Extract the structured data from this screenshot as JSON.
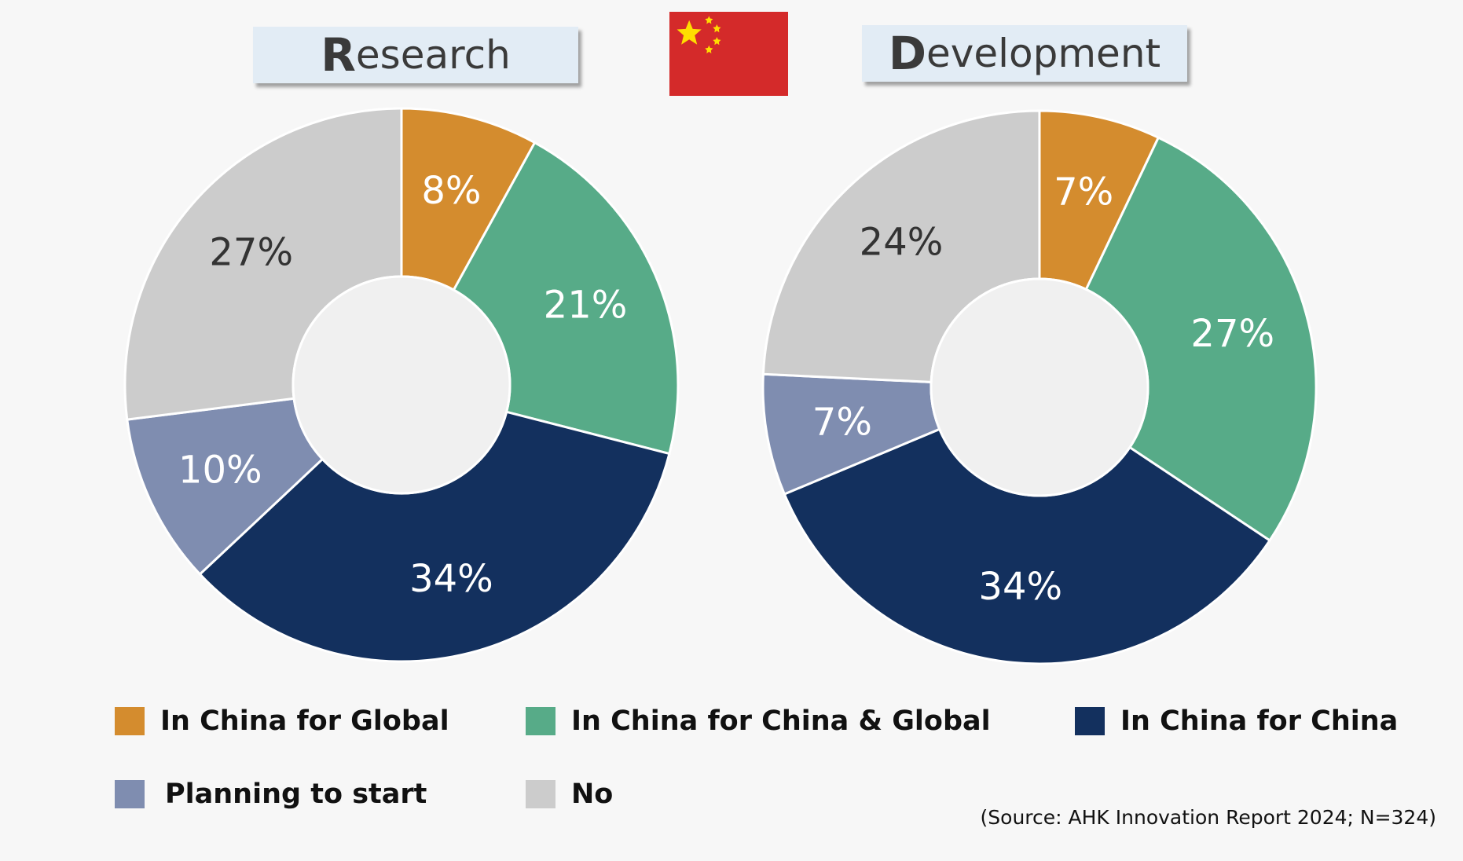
{
  "flag": {
    "name": "China flag",
    "red": "#d42a2a",
    "star": "#ffde00"
  },
  "legend": [
    {
      "label": "In China for Global",
      "color": "#d48c2e"
    },
    {
      "label": "In China for China & Global",
      "color": "#57ab88"
    },
    {
      "label": "In China for China",
      "color": "#13305e"
    },
    {
      "label": "Planning to start",
      "color": "#7f8db0"
    },
    {
      "label": "No",
      "color": "#cccccc"
    }
  ],
  "source": "(Source: AHK Innovation Report 2024; N=324)",
  "chart_data": [
    {
      "type": "donut",
      "title": "Research",
      "title_initial": "R",
      "title_rest": "esearch",
      "categories": [
        "In China for Global",
        "In China for China & Global",
        "In China for China",
        "Planning to start",
        "No"
      ],
      "values": [
        8,
        21,
        34,
        10,
        27
      ],
      "labels": [
        "8%",
        "21%",
        "34%",
        "10%",
        "27%"
      ],
      "label_colors": [
        "#ffffff",
        "#ffffff",
        "#ffffff",
        "#ffffff",
        "#333333"
      ]
    },
    {
      "type": "donut",
      "title": "Development",
      "title_initial": "D",
      "title_rest": "evelopment",
      "categories": [
        "In China for Global",
        "In China for China & Global",
        "In China for China",
        "Planning to start",
        "No"
      ],
      "values": [
        7,
        27,
        34,
        7,
        24
      ],
      "labels": [
        "7%",
        "27%",
        "34%",
        "7%",
        "24%"
      ],
      "label_colors": [
        "#ffffff",
        "#ffffff",
        "#ffffff",
        "#ffffff",
        "#333333"
      ]
    }
  ]
}
